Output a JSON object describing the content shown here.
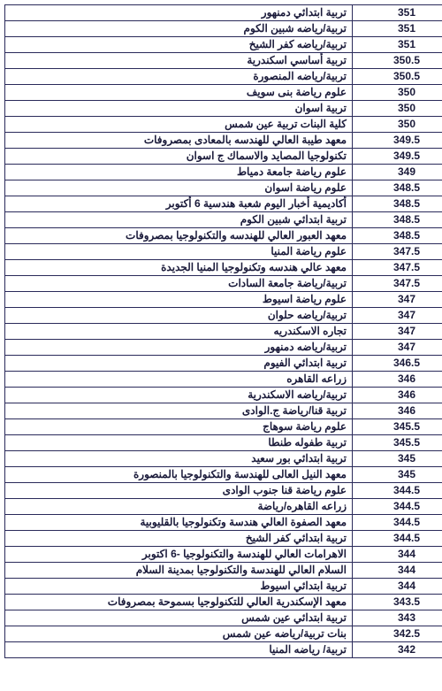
{
  "table": {
    "rows": [
      {
        "name": "تربية ابتدائي دمنهور",
        "score": "351"
      },
      {
        "name": "تربية/رياضه شبين الكوم",
        "score": "351"
      },
      {
        "name": "تربية/رياضه كفر الشيخ",
        "score": "351"
      },
      {
        "name": "تربية أساسي اسكندرية",
        "score": "350.5"
      },
      {
        "name": "تربية/رياضه المنصورة",
        "score": "350.5"
      },
      {
        "name": "علوم رياضة بنى سويف",
        "score": "350"
      },
      {
        "name": "تربية اسوان",
        "score": "350"
      },
      {
        "name": "كلية البنات تربية عين شمس",
        "score": "350"
      },
      {
        "name": "معهد طيبة العالي للهندسه بالمعادى بمصروفات",
        "score": "349.5"
      },
      {
        "name": "تكنولوجيا المصايد والاسماك ج اسوان",
        "score": "349.5"
      },
      {
        "name": "علوم رياضة جامعة دمياط",
        "score": "349"
      },
      {
        "name": "علوم رياضة اسوان",
        "score": "348.5"
      },
      {
        "name": "أكاديمية أخبار اليوم شعبة هندسية 6 أكتوبر",
        "score": "348.5"
      },
      {
        "name": "تربية ابتدائي شبين الكوم",
        "score": "348.5"
      },
      {
        "name": "معهد العبور العالي للهندسه والتكنولوجيا بمصروفات",
        "score": "348.5"
      },
      {
        "name": "علوم رياضة المنيا",
        "score": "347.5"
      },
      {
        "name": "معهد عالي هندسه وتكنولوجيا المنيا الجديدة",
        "score": "347.5"
      },
      {
        "name": "تربية/رياضة جامعة السادات",
        "score": "347.5"
      },
      {
        "name": "علوم رياضة اسيوط",
        "score": "347"
      },
      {
        "name": "تربية/رياضه حلوان",
        "score": "347"
      },
      {
        "name": "تجاره الاسكندريه",
        "score": "347"
      },
      {
        "name": "تربية/رياضه دمنهور",
        "score": "347"
      },
      {
        "name": "تربية ابتدائي الفيوم",
        "score": "346.5"
      },
      {
        "name": "زراعه القاهره",
        "score": "346"
      },
      {
        "name": "تربية/رياضه الاسكندرية",
        "score": "346"
      },
      {
        "name": "تربية قنا/رياضة ج.الوادى",
        "score": "346"
      },
      {
        "name": "علوم رياضة سوهاج",
        "score": "345.5"
      },
      {
        "name": "تربية طفوله طنطا",
        "score": "345.5"
      },
      {
        "name": "تربية ابتدائي بور سعيد",
        "score": "345"
      },
      {
        "name": "معهد النيل العالى للهندسة والتكنولوجيا بالمنصورة",
        "score": "345"
      },
      {
        "name": "علوم رياضة قنا جنوب الوادى",
        "score": "344.5"
      },
      {
        "name": "زراعه القاهره/رياضة",
        "score": "344.5"
      },
      {
        "name": "معهد الصفوة العالي هندسة وتكنولوجيا بالقليوبية",
        "score": "344.5"
      },
      {
        "name": "تربية ابتدائي كفر الشيخ",
        "score": "344.5"
      },
      {
        "name": "الاهرامات العالي للهندسة والتكنولوجيا -6 اكتوبر",
        "score": "344"
      },
      {
        "name": "السلام العالي للهندسة والتكنولوجيا بمدينة السلام",
        "score": "344"
      },
      {
        "name": "تربية ابتدائي اسيوط",
        "score": "344"
      },
      {
        "name": "معهد الإسكندرية العالي للتكنولوجيا بسموحة بمصروفات",
        "score": "343.5"
      },
      {
        "name": "تربية ابتدائي عين شمس",
        "score": "343"
      },
      {
        "name": "بنات تربية/رياضه عين شمس",
        "score": "342.5"
      },
      {
        "name": "تربية/ رياضه المنيا",
        "score": "342"
      }
    ]
  }
}
